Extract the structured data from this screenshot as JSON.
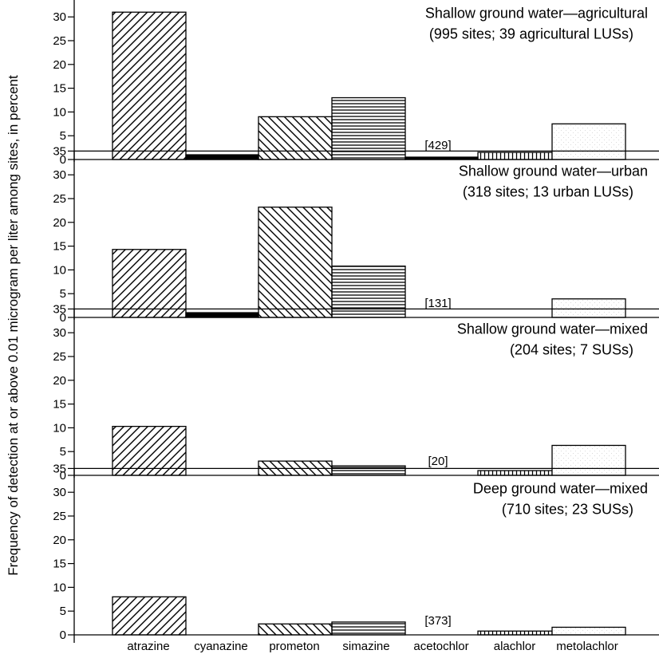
{
  "chart_data": {
    "type": "bar",
    "ylabel": "Frequency of detection at or above 0.01 microgram per liter among sites, in percent",
    "categories": [
      "atrazine",
      "cyanazine",
      "prometon",
      "simazine",
      "acetochlor",
      "alachlor",
      "metolachlor"
    ],
    "ylim": [
      0,
      35
    ],
    "yticks": [
      "0",
      "5",
      "10",
      "15",
      "20",
      "25",
      "30",
      "35"
    ],
    "panels": [
      {
        "title_line1": "Shallow ground water—agricultural",
        "title_line2": "(995 sites; 39 agricultural LUSs)",
        "values": [
          31,
          1,
          9,
          13,
          0.5,
          1.5,
          7.5
        ],
        "acetochlor_note": "[429]"
      },
      {
        "title_line1": "Shallow ground water—urban",
        "title_line2": "(318 sites; 13 urban LUSs)",
        "values": [
          14.3,
          1,
          23.2,
          10.8,
          0,
          0,
          3.9
        ],
        "acetochlor_note": "[131]"
      },
      {
        "title_line1": "Shallow ground water—mixed",
        "title_line2": "(204 sites; 7 SUSs)",
        "values": [
          10.3,
          0,
          3,
          2,
          0,
          1,
          6.3
        ],
        "acetochlor_note": "[20]"
      },
      {
        "title_line1": "Deep ground water—mixed",
        "title_line2": "(710 sites; 23 SUSs)",
        "values": [
          8,
          0,
          2.3,
          2.7,
          0,
          0.8,
          1.6
        ],
        "acetochlor_note": "[373]"
      }
    ],
    "patterns": [
      "diagonal-forward",
      "solid",
      "diagonal-back",
      "horizontal",
      "solid",
      "vertical",
      "stipple"
    ],
    "colors": {
      "bar_stroke": "#000000",
      "fill": "#000000",
      "stipple": "#bdbdbd"
    }
  }
}
